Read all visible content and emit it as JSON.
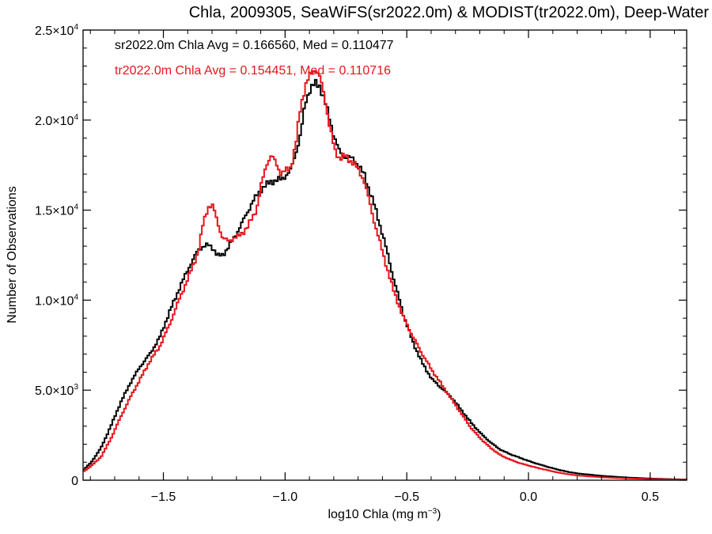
{
  "chart_data": {
    "type": "line",
    "title": "Chla, 2009305, SeaWiFS(sr2022.0m) & MODIST(tr2022.0m), Deep-Water",
    "xlabel_main": "log10 Chla (mg m",
    "xlabel_sup": "−3",
    "xlabel_close": ")",
    "ylabel": "Number of Observations",
    "xlim": [
      -1.83,
      0.65
    ],
    "ylim": [
      0,
      25000
    ],
    "x_ticks": [
      {
        "value": -1.5,
        "label": "−1.5"
      },
      {
        "value": -1.0,
        "label": "−1.0"
      },
      {
        "value": -0.5,
        "label": "−0.5"
      },
      {
        "value": 0.0,
        "label": "0.0"
      },
      {
        "value": 0.5,
        "label": "0.5"
      }
    ],
    "y_ticks": [
      {
        "value": 0,
        "mant": "0",
        "exp": ""
      },
      {
        "value": 5000,
        "mant": "5.0×10",
        "exp": "3"
      },
      {
        "value": 10000,
        "mant": "1.0×10",
        "exp": "4"
      },
      {
        "value": 15000,
        "mant": "1.5×10",
        "exp": "4"
      },
      {
        "value": 20000,
        "mant": "2.0×10",
        "exp": "4"
      },
      {
        "value": 25000,
        "mant": "2.5×10",
        "exp": "4"
      }
    ],
    "annotations": [
      {
        "text": "sr2022.0m Chla Avg = 0.166560, Med = 0.110477",
        "color": "#000000"
      },
      {
        "text": "tr2022.0m Chla Avg = 0.154451, Med = 0.110716",
        "color": "#e8141c"
      }
    ],
    "series": [
      {
        "color": "#000000",
        "points": [
          [
            -1.83,
            600
          ],
          [
            -1.8,
            1000
          ],
          [
            -1.76,
            1800
          ],
          [
            -1.72,
            3000
          ],
          [
            -1.68,
            4300
          ],
          [
            -1.64,
            5400
          ],
          [
            -1.6,
            6300
          ],
          [
            -1.56,
            7000
          ],
          [
            -1.52,
            7900
          ],
          [
            -1.48,
            9300
          ],
          [
            -1.44,
            10600
          ],
          [
            -1.4,
            11800
          ],
          [
            -1.36,
            12800
          ],
          [
            -1.34,
            13000
          ],
          [
            -1.32,
            13050
          ],
          [
            -1.3,
            12900
          ],
          [
            -1.28,
            12450
          ],
          [
            -1.26,
            12500
          ],
          [
            -1.22,
            13300
          ],
          [
            -1.18,
            14300
          ],
          [
            -1.14,
            15400
          ],
          [
            -1.1,
            16200
          ],
          [
            -1.06,
            16600
          ],
          [
            -1.02,
            16700
          ],
          [
            -0.98,
            17200
          ],
          [
            -0.94,
            19200
          ],
          [
            -0.92,
            21000
          ],
          [
            -0.9,
            21800
          ],
          [
            -0.88,
            22000
          ],
          [
            -0.86,
            21900
          ],
          [
            -0.84,
            21000
          ],
          [
            -0.82,
            20000
          ],
          [
            -0.8,
            19000
          ],
          [
            -0.78,
            18200
          ],
          [
            -0.76,
            18000
          ],
          [
            -0.72,
            17800
          ],
          [
            -0.68,
            17000
          ],
          [
            -0.64,
            15400
          ],
          [
            -0.6,
            13500
          ],
          [
            -0.56,
            11300
          ],
          [
            -0.52,
            9300
          ],
          [
            -0.48,
            7700
          ],
          [
            -0.44,
            6500
          ],
          [
            -0.4,
            5600
          ],
          [
            -0.36,
            5100
          ],
          [
            -0.32,
            4600
          ],
          [
            -0.28,
            3900
          ],
          [
            -0.24,
            3200
          ],
          [
            -0.2,
            2600
          ],
          [
            -0.16,
            2100
          ],
          [
            -0.12,
            1700
          ],
          [
            -0.08,
            1450
          ],
          [
            -0.04,
            1250
          ],
          [
            0.0,
            1050
          ],
          [
            0.04,
            880
          ],
          [
            0.08,
            720
          ],
          [
            0.12,
            580
          ],
          [
            0.16,
            460
          ],
          [
            0.2,
            370
          ],
          [
            0.3,
            240
          ],
          [
            0.4,
            150
          ],
          [
            0.5,
            90
          ],
          [
            0.6,
            50
          ],
          [
            0.65,
            40
          ]
        ]
      },
      {
        "color": "#e8141c",
        "points": [
          [
            -1.83,
            500
          ],
          [
            -1.8,
            800
          ],
          [
            -1.76,
            1300
          ],
          [
            -1.72,
            2300
          ],
          [
            -1.68,
            3500
          ],
          [
            -1.64,
            4600
          ],
          [
            -1.6,
            5600
          ],
          [
            -1.56,
            6600
          ],
          [
            -1.52,
            7400
          ],
          [
            -1.48,
            8600
          ],
          [
            -1.44,
            10000
          ],
          [
            -1.4,
            11300
          ],
          [
            -1.36,
            12700
          ],
          [
            -1.34,
            14300
          ],
          [
            -1.32,
            15200
          ],
          [
            -1.3,
            15200
          ],
          [
            -1.28,
            14300
          ],
          [
            -1.26,
            13400
          ],
          [
            -1.24,
            13300
          ],
          [
            -1.2,
            13500
          ],
          [
            -1.16,
            14000
          ],
          [
            -1.12,
            15100
          ],
          [
            -1.1,
            16500
          ],
          [
            -1.08,
            17600
          ],
          [
            -1.06,
            18000
          ],
          [
            -1.04,
            17600
          ],
          [
            -1.02,
            17000
          ],
          [
            -0.98,
            17400
          ],
          [
            -0.96,
            18600
          ],
          [
            -0.94,
            20800
          ],
          [
            -0.92,
            21900
          ],
          [
            -0.9,
            22500
          ],
          [
            -0.88,
            22900
          ],
          [
            -0.86,
            22300
          ],
          [
            -0.84,
            21200
          ],
          [
            -0.82,
            19600
          ],
          [
            -0.8,
            18300
          ],
          [
            -0.78,
            17900
          ],
          [
            -0.76,
            18000
          ],
          [
            -0.72,
            17600
          ],
          [
            -0.68,
            16700
          ],
          [
            -0.64,
            14500
          ],
          [
            -0.6,
            12500
          ],
          [
            -0.56,
            10600
          ],
          [
            -0.52,
            9100
          ],
          [
            -0.48,
            8000
          ],
          [
            -0.44,
            7000
          ],
          [
            -0.4,
            6100
          ],
          [
            -0.36,
            5300
          ],
          [
            -0.32,
            4500
          ],
          [
            -0.28,
            3700
          ],
          [
            -0.24,
            2900
          ],
          [
            -0.2,
            2300
          ],
          [
            -0.16,
            1800
          ],
          [
            -0.12,
            1400
          ],
          [
            -0.08,
            1150
          ],
          [
            -0.04,
            950
          ],
          [
            0.0,
            800
          ],
          [
            0.04,
            660
          ],
          [
            0.08,
            540
          ],
          [
            0.12,
            420
          ],
          [
            0.16,
            330
          ],
          [
            0.2,
            260
          ],
          [
            0.3,
            160
          ],
          [
            0.4,
            100
          ],
          [
            0.5,
            60
          ],
          [
            0.6,
            35
          ],
          [
            0.65,
            30
          ]
        ]
      }
    ]
  }
}
